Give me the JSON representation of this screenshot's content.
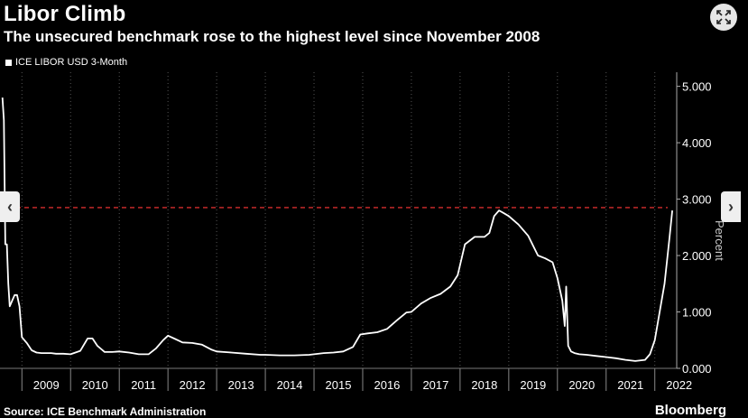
{
  "header": {
    "title": "Libor Climb",
    "subtitle": "The unsecured benchmark rose to the highest level since November 2008"
  },
  "legend": {
    "series_label": "ICE LIBOR USD 3-Month"
  },
  "footer": {
    "source": "Source: ICE Benchmark Administration",
    "brand": "Bloomberg"
  },
  "controls": {
    "zoom_icon": "expand-icon",
    "prev_icon": "chevron-left-icon",
    "next_icon": "chevron-right-icon",
    "prev_label": "‹",
    "next_label": "›"
  },
  "colors": {
    "background": "#000000",
    "line": "#ffffff",
    "reference_line": "#d62d2d"
  },
  "chart_data": {
    "type": "line",
    "ylabel": "Percent",
    "ylim": [
      0,
      5.25
    ],
    "xlim": [
      2008.55,
      2022.45
    ],
    "yticks": [
      0,
      1,
      2,
      3,
      4,
      5
    ],
    "ytick_labels": [
      "0.000",
      "1.000",
      "2.000",
      "3.000",
      "4.000",
      "5.000"
    ],
    "xtick_labels": [
      "2009",
      "2010",
      "2011",
      "2012",
      "2013",
      "2014",
      "2015",
      "2016",
      "2017",
      "2018",
      "2019",
      "2020",
      "2021",
      "2022"
    ],
    "grid": "vertical-dotted",
    "legend_position": "top-left",
    "reference_line": {
      "y": 2.85,
      "style": "dashed"
    },
    "series": [
      {
        "name": "ICE LIBOR USD 3-Month",
        "x": [
          2008.6,
          2008.63,
          2008.66,
          2008.69,
          2008.72,
          2008.75,
          2008.8,
          2008.85,
          2008.9,
          2008.95,
          2009.0,
          2009.1,
          2009.2,
          2009.3,
          2009.4,
          2009.5,
          2009.6,
          2009.7,
          2009.85,
          2010.0,
          2010.2,
          2010.35,
          2010.45,
          2010.55,
          2010.7,
          2010.85,
          2011.0,
          2011.2,
          2011.4,
          2011.6,
          2011.75,
          2011.9,
          2012.0,
          2012.15,
          2012.3,
          2012.5,
          2012.7,
          2012.9,
          2013.0,
          2013.3,
          2013.6,
          2013.9,
          2014.0,
          2014.3,
          2014.6,
          2014.9,
          2015.0,
          2015.2,
          2015.4,
          2015.6,
          2015.8,
          2015.95,
          2016.1,
          2016.3,
          2016.5,
          2016.7,
          2016.9,
          2017.0,
          2017.2,
          2017.4,
          2017.6,
          2017.8,
          2017.95,
          2018.1,
          2018.3,
          2018.5,
          2018.6,
          2018.7,
          2018.8,
          2018.9,
          2019.0,
          2019.2,
          2019.4,
          2019.6,
          2019.75,
          2019.9,
          2020.0,
          2020.1,
          2020.15,
          2020.18,
          2020.22,
          2020.28,
          2020.35,
          2020.45,
          2020.6,
          2020.8,
          2021.0,
          2021.2,
          2021.4,
          2021.6,
          2021.8,
          2021.9,
          2022.0,
          2022.1,
          2022.2,
          2022.3,
          2022.36
        ],
        "values": [
          4.8,
          4.4,
          2.2,
          2.2,
          1.5,
          1.1,
          1.2,
          1.3,
          1.3,
          1.1,
          0.55,
          0.45,
          0.32,
          0.28,
          0.27,
          0.27,
          0.27,
          0.26,
          0.26,
          0.25,
          0.31,
          0.53,
          0.53,
          0.4,
          0.29,
          0.29,
          0.3,
          0.28,
          0.25,
          0.25,
          0.35,
          0.5,
          0.58,
          0.52,
          0.46,
          0.45,
          0.42,
          0.33,
          0.3,
          0.28,
          0.26,
          0.24,
          0.24,
          0.23,
          0.23,
          0.24,
          0.25,
          0.27,
          0.28,
          0.3,
          0.38,
          0.6,
          0.62,
          0.64,
          0.7,
          0.85,
          0.99,
          1.0,
          1.15,
          1.25,
          1.32,
          1.45,
          1.65,
          2.2,
          2.33,
          2.33,
          2.4,
          2.7,
          2.8,
          2.75,
          2.7,
          2.55,
          2.35,
          2.0,
          1.95,
          1.88,
          1.6,
          1.2,
          0.75,
          1.45,
          0.4,
          0.3,
          0.27,
          0.25,
          0.24,
          0.22,
          0.2,
          0.18,
          0.15,
          0.13,
          0.15,
          0.25,
          0.5,
          1.0,
          1.5,
          2.3,
          2.8
        ]
      }
    ]
  }
}
